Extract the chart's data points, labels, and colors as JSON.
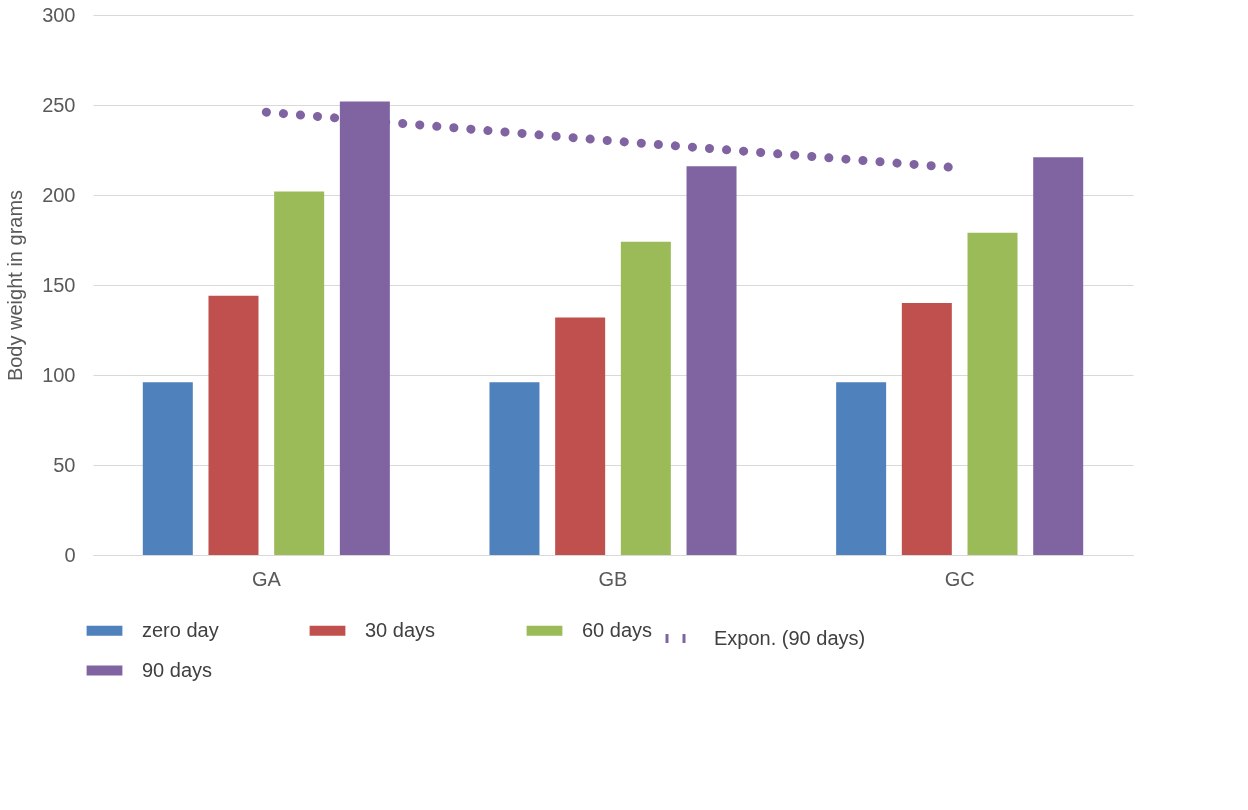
{
  "chart_data": {
    "type": "bar",
    "ylabel": "Body weight in grams",
    "categories": [
      "GA",
      "GB",
      "GC"
    ],
    "series": [
      {
        "name": "zero day",
        "color": "#4f81bd",
        "values": [
          96,
          96,
          96
        ]
      },
      {
        "name": "30 days",
        "color": "#c0504d",
        "values": [
          144,
          132,
          140
        ]
      },
      {
        "name": "60 days",
        "color": "#9bbb59",
        "values": [
          202,
          174,
          179
        ]
      },
      {
        "name": "90 days",
        "color": "#8064a2",
        "values": [
          252,
          216,
          221
        ]
      },
      {
        "name": "Expon. (90 days)",
        "color": "#8064a2",
        "type": "line",
        "values": [
          246,
          230,
          215
        ]
      }
    ],
    "line_style": "dotted",
    "ylim": [
      0,
      300
    ],
    "yticks": [
      0,
      50,
      100,
      150,
      200,
      250,
      300
    ],
    "grid": "y",
    "legend": "bottom"
  }
}
